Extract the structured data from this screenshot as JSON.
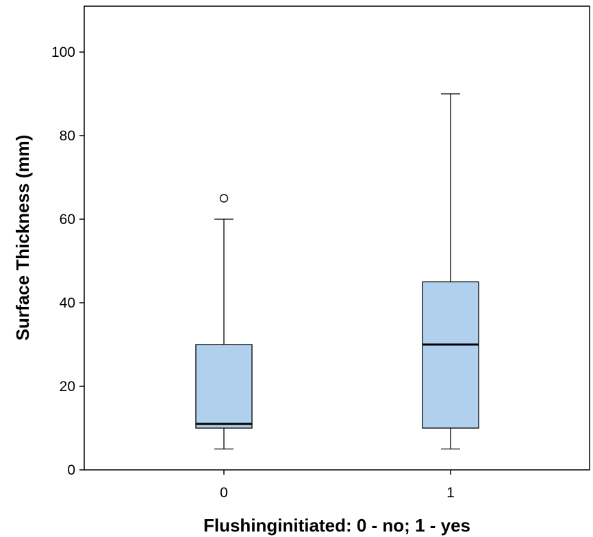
{
  "chart_data": {
    "type": "boxplot",
    "xlabel": "Flushinginitiated: 0 - no; 1 - yes",
    "ylabel": "Surface Thickness (mm)",
    "ylim": [
      0,
      110
    ],
    "yticks": [
      0,
      20,
      40,
      60,
      80,
      100
    ],
    "categories": [
      "0",
      "1"
    ],
    "boxes": [
      {
        "category": "0",
        "whisker_low": 5,
        "q1": 10,
        "median": 11,
        "q3": 30,
        "whisker_high": 60,
        "outliers": [
          65
        ]
      },
      {
        "category": "1",
        "whisker_low": 5,
        "q1": 10,
        "median": 30,
        "q3": 45,
        "whisker_high": 90,
        "outliers": []
      }
    ],
    "box_color": "#b0d0ee",
    "grid": false,
    "legend": "none"
  }
}
